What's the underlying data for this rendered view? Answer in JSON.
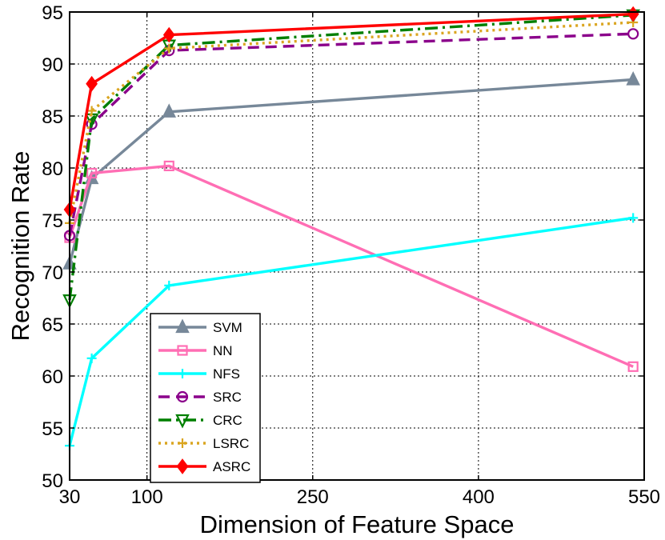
{
  "chart_data": {
    "type": "line",
    "title": "",
    "xlabel": "Dimension of Feature Space",
    "ylabel": "Recognition Rate",
    "x": [
      30,
      50,
      120,
      540
    ],
    "xlim": [
      30,
      550
    ],
    "ylim": [
      50,
      95
    ],
    "xticks": [
      30,
      100,
      250,
      400,
      550
    ],
    "yticks": [
      50,
      55,
      60,
      65,
      70,
      75,
      80,
      85,
      90,
      95
    ],
    "grid": true,
    "legend_position": "lower-left",
    "series": [
      {
        "name": "SVM",
        "color": "#778899",
        "dash": "",
        "marker": "triangle-up",
        "values": [
          70.8,
          79.0,
          85.4,
          88.5
        ]
      },
      {
        "name": "NN",
        "color": "#ff6eb4",
        "dash": "",
        "marker": "square",
        "values": [
          73.3,
          79.5,
          80.2,
          60.9
        ]
      },
      {
        "name": "NFS",
        "color": "#00ffff",
        "dash": "",
        "marker": "plus",
        "values": [
          53.3,
          61.7,
          68.7,
          75.2
        ]
      },
      {
        "name": "SRC",
        "color": "#8b008b",
        "dash": "14 8",
        "marker": "circle",
        "values": [
          73.5,
          84.2,
          91.3,
          92.9
        ]
      },
      {
        "name": "CRC",
        "color": "#007f00",
        "dash": "16 6 3 6",
        "marker": "triangle-down",
        "values": [
          67.3,
          84.7,
          91.8,
          94.7
        ]
      },
      {
        "name": "LSRC",
        "color": "#daa520",
        "dash": "3 5",
        "marker": "plus",
        "values": [
          74.7,
          85.5,
          91.5,
          94.0
        ]
      },
      {
        "name": "ASRC",
        "color": "#ff0000",
        "dash": "",
        "marker": "diamond",
        "values": [
          76.0,
          88.1,
          92.8,
          94.8
        ]
      }
    ]
  }
}
